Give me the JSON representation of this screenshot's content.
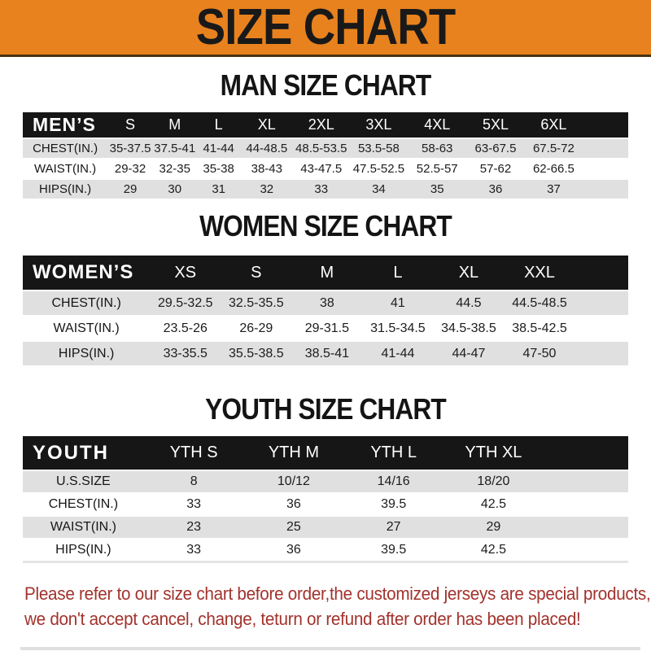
{
  "banner": {
    "title": "SIZE CHART"
  },
  "chart_data": [
    {
      "type": "table",
      "title": "MAN SIZE CHART",
      "header_label": "MEN’S",
      "columns": [
        "S",
        "M",
        "L",
        "XL",
        "2XL",
        "3XL",
        "4XL",
        "5XL",
        "6XL"
      ],
      "rows": [
        {
          "label": "CHEST(IN.)",
          "values": [
            "35-37.5",
            "37.5-41",
            "41-44",
            "44-48.5",
            "48.5-53.5",
            "53.5-58",
            "58-63",
            "63-67.5",
            "67.5-72"
          ]
        },
        {
          "label": "WAIST(IN.)",
          "values": [
            "29-32",
            "32-35",
            "35-38",
            "38-43",
            "43-47.5",
            "47.5-52.5",
            "52.5-57",
            "57-62",
            "62-66.5"
          ]
        },
        {
          "label": "HIPS(IN.)",
          "values": [
            "29",
            "30",
            "31",
            "32",
            "33",
            "34",
            "35",
            "36",
            "37"
          ]
        }
      ]
    },
    {
      "type": "table",
      "title": "WOMEN SIZE CHART",
      "header_label": "WOMEN’S",
      "columns": [
        "XS",
        "S",
        "M",
        "L",
        "XL",
        "XXL"
      ],
      "rows": [
        {
          "label": "CHEST(IN.)",
          "values": [
            "29.5-32.5",
            "32.5-35.5",
            "38",
            "41",
            "44.5",
            "44.5-48.5"
          ]
        },
        {
          "label": "WAIST(IN.)",
          "values": [
            "23.5-26",
            "26-29",
            "29-31.5",
            "31.5-34.5",
            "34.5-38.5",
            "38.5-42.5"
          ]
        },
        {
          "label": "HIPS(IN.)",
          "values": [
            "33-35.5",
            "35.5-38.5",
            "38.5-41",
            "41-44",
            "44-47",
            "47-50"
          ]
        }
      ]
    },
    {
      "type": "table",
      "title": "YOUTH SIZE CHART",
      "header_label": "YOUTH",
      "columns": [
        "YTH S",
        "YTH M",
        "YTH L",
        "YTH XL"
      ],
      "rows": [
        {
          "label": "U.S.SIZE",
          "values": [
            "8",
            "10/12",
            "14/16",
            "18/20"
          ]
        },
        {
          "label": "CHEST(IN.)",
          "values": [
            "33",
            "36",
            "39.5",
            "42.5"
          ]
        },
        {
          "label": "WAIST(IN.)",
          "values": [
            "23",
            "25",
            "27",
            "29"
          ]
        },
        {
          "label": "HIPS(IN.)",
          "values": [
            "33",
            "36",
            "39.5",
            "42.5"
          ]
        }
      ]
    }
  ],
  "footer": {
    "line1": "Please refer to our size chart before order,the customized jerseys are special products,",
    "line2": "we don't accept cancel, change, teturn or refund after order has been placed!"
  },
  "colors": {
    "banner_orange": "#E8821E",
    "header_bar_black": "#161616",
    "row_gray": "#E0E0E0",
    "footer_red": "#A2322C"
  }
}
